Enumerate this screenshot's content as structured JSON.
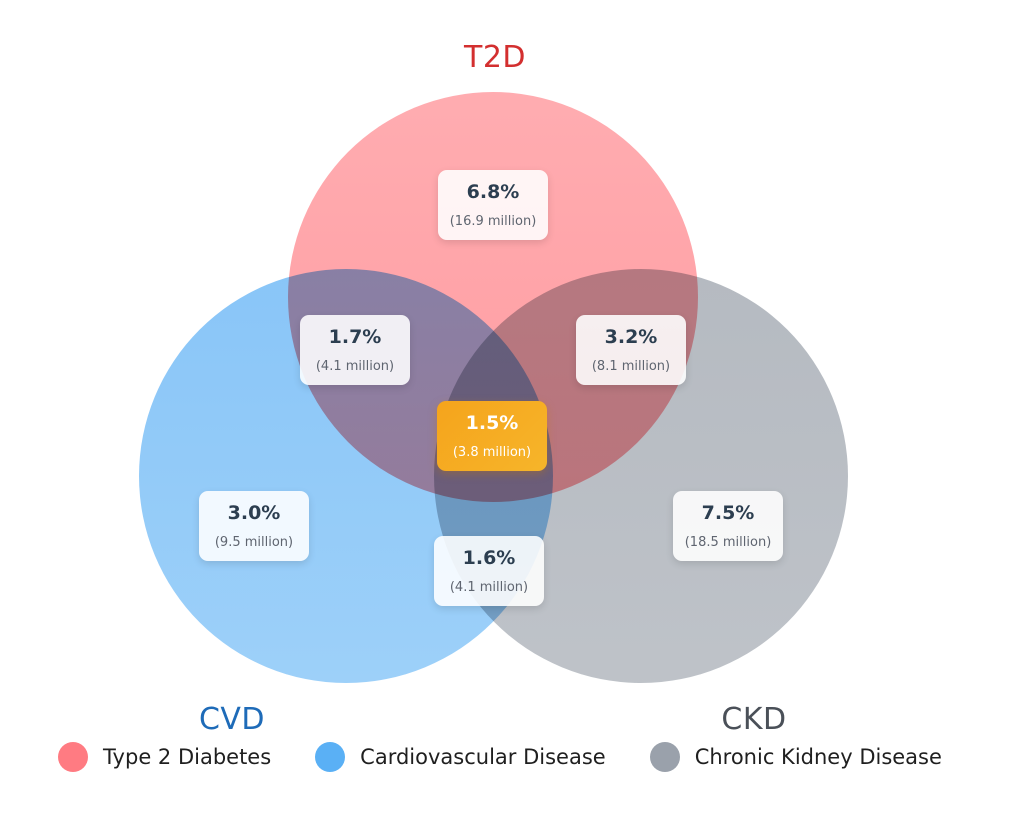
{
  "chart_data": {
    "type": "venn",
    "title": "",
    "sets": [
      {
        "id": "T2D",
        "short_label": "T2D",
        "name": "Type 2 Diabetes",
        "color": "#ff7b82",
        "label_color": "#d32f2f"
      },
      {
        "id": "CVD",
        "short_label": "CVD",
        "name": "Cardiovascular Disease",
        "color": "#5ab0f5",
        "label_color": "#1e6bb8"
      },
      {
        "id": "CKD",
        "short_label": "CKD",
        "name": "Chronic Kidney Disease",
        "color": "#9aa1ab",
        "label_color": "#4a5058"
      }
    ],
    "regions": [
      {
        "sets": [
          "T2D"
        ],
        "percent": "6.8%",
        "count": "(16.9 million)",
        "value_pct": 6.8,
        "value_millions": 16.9
      },
      {
        "sets": [
          "CVD"
        ],
        "percent": "3.0%",
        "count": "(9.5 million)",
        "value_pct": 3.0,
        "value_millions": 9.5
      },
      {
        "sets": [
          "CKD"
        ],
        "percent": "7.5%",
        "count": "(18.5 million)",
        "value_pct": 7.5,
        "value_millions": 18.5
      },
      {
        "sets": [
          "T2D",
          "CVD"
        ],
        "percent": "1.7%",
        "count": "(4.1 million)",
        "value_pct": 1.7,
        "value_millions": 4.1
      },
      {
        "sets": [
          "T2D",
          "CKD"
        ],
        "percent": "3.2%",
        "count": "(8.1 million)",
        "value_pct": 3.2,
        "value_millions": 8.1
      },
      {
        "sets": [
          "CVD",
          "CKD"
        ],
        "percent": "1.6%",
        "count": "(4.1 million)",
        "value_pct": 1.6,
        "value_millions": 4.1
      },
      {
        "sets": [
          "T2D",
          "CVD",
          "CKD"
        ],
        "percent": "1.5%",
        "count": "(3.8 million)",
        "value_pct": 1.5,
        "value_millions": 3.8,
        "highlight": true,
        "highlight_color": "#f5a623"
      }
    ],
    "legend": {
      "placement": "bottom-left",
      "items": [
        {
          "label": "Type 2 Diabetes",
          "color": "#ff7b82"
        },
        {
          "label": "Cardiovascular Disease",
          "color": "#5ab0f5"
        },
        {
          "label": "Chronic Kidney Disease",
          "color": "#9aa1ab"
        }
      ]
    }
  }
}
